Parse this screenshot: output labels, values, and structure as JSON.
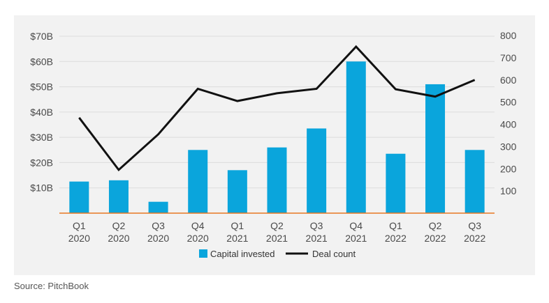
{
  "chart_data": {
    "type": "bar",
    "categories": [
      [
        "Q1",
        "2020"
      ],
      [
        "Q2",
        "2020"
      ],
      [
        "Q3",
        "2020"
      ],
      [
        "Q4",
        "2020"
      ],
      [
        "Q1",
        "2021"
      ],
      [
        "Q2",
        "2021"
      ],
      [
        "Q3",
        "2021"
      ],
      [
        "Q4",
        "2021"
      ],
      [
        "Q1",
        "2022"
      ],
      [
        "Q2",
        "2022"
      ],
      [
        "Q3",
        "2022"
      ]
    ],
    "series": [
      {
        "name": "Capital invested",
        "type": "bar",
        "axis": "left",
        "color": "#0aa5dc",
        "values": [
          12.5,
          13.0,
          4.5,
          25.0,
          17.0,
          26.0,
          33.5,
          60.0,
          23.5,
          51.0,
          25.0
        ]
      },
      {
        "name": "Deal count",
        "type": "line",
        "axis": "right",
        "color": "#111111",
        "values": [
          430,
          195,
          355,
          560,
          505,
          540,
          560,
          750,
          558,
          525,
          600
        ]
      }
    ],
    "y_left": {
      "ylim": [
        0,
        70
      ],
      "ticks": [
        10,
        20,
        30,
        40,
        50,
        60,
        70
      ],
      "tick_labels": [
        "$10B",
        "$20B",
        "$30B",
        "$40B",
        "$50B",
        "$60B",
        "$70B"
      ]
    },
    "y_right": {
      "ylim": [
        0,
        800
      ],
      "ticks": [
        100,
        200,
        300,
        400,
        500,
        600,
        700,
        800
      ],
      "tick_labels": [
        "100",
        "200",
        "300",
        "400",
        "500",
        "600",
        "700",
        "800"
      ]
    },
    "grid": "horizontal",
    "legend": "bottom-center",
    "axis_line_color": "#e87722"
  },
  "source": "Source: PitchBook"
}
